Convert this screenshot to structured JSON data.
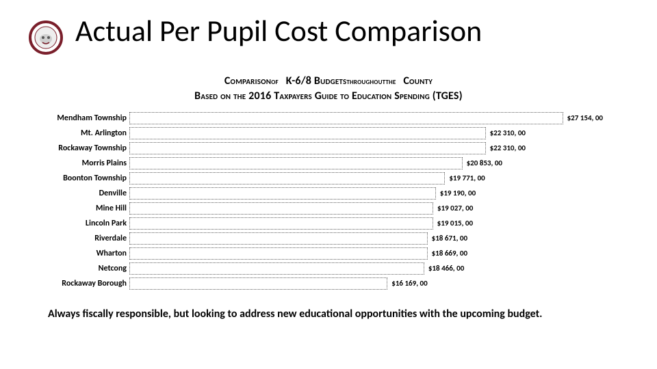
{
  "title": "Actual Per Pupil Cost Comparison",
  "subtitle_line1_parts": {
    "a": "Comparison",
    "b": "of",
    "c": "K-6/8 Budgets",
    "d": "throughout",
    "e": "the",
    "f": "County"
  },
  "subtitle_line2": "Based on the 2016 Taxpayers Guide to Education Spending (TGES)",
  "chart": {
    "type": "bar-horizontal",
    "bar_border_color": "#606060",
    "bar_border_style": "dotted",
    "bar_fill": "transparent",
    "background_color": "#ffffff",
    "label_fontsize": 12,
    "value_fontsize": 11,
    "font_weight": "700",
    "xmin": 0,
    "xmax": 30000,
    "categories": [
      "Mendham Township",
      "Mt. Arlington",
      "Rockaway Township",
      "Morris Plains",
      "Boonton Township",
      "Denville",
      "Mine Hill",
      "Lincoln Park",
      "Riverdale",
      "Wharton",
      "Netcong",
      "Rockaway Borough"
    ],
    "values": [
      27154.0,
      22310.0,
      22310.0,
      20853.0,
      19771.0,
      19190.0,
      19027.0,
      19015.0,
      18671.0,
      18669.0,
      18466.0,
      16169.0
    ],
    "value_labels": [
      "$27 154, 00",
      "$22 310, 00",
      "$22 310, 00",
      "$20 853, 00",
      "$19 771, 00",
      "$19 190, 00",
      "$19 027, 00",
      "$19 015, 00",
      "$18 671, 00",
      "$18 669, 00",
      "$18 466, 00",
      "$16 169, 00"
    ]
  },
  "footer": "Always fiscally responsible, but looking to address new educational opportunities with the upcoming budget.",
  "logo": {
    "ring_color": "#7a1f2b",
    "inner_bg": "#ffffff",
    "accent": "#b8860b"
  }
}
